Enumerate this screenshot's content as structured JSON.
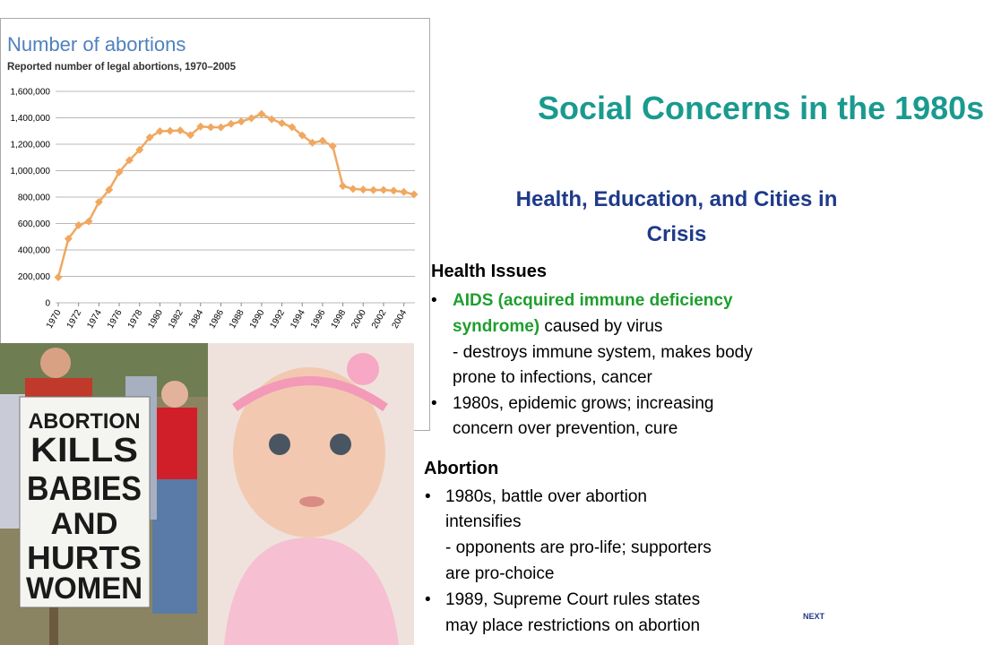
{
  "chart_data": {
    "type": "line",
    "title": "Number of abortions",
    "subtitle": "Reported number of legal abortions, 1970–2005",
    "x": [
      1970,
      1971,
      1972,
      1973,
      1974,
      1975,
      1976,
      1977,
      1978,
      1979,
      1980,
      1981,
      1982,
      1983,
      1984,
      1985,
      1986,
      1987,
      1988,
      1989,
      1990,
      1991,
      1992,
      1993,
      1994,
      1995,
      1996,
      1997,
      1998,
      1999,
      2000,
      2001,
      2002,
      2003,
      2004,
      2005
    ],
    "values": [
      193000,
      485000,
      587000,
      616000,
      763000,
      855000,
      989000,
      1079000,
      1158000,
      1252000,
      1298000,
      1301000,
      1304000,
      1269000,
      1334000,
      1329000,
      1328000,
      1354000,
      1372000,
      1397000,
      1429000,
      1389000,
      1359000,
      1330000,
      1267000,
      1211000,
      1226000,
      1186000,
      884000,
      862000,
      857000,
      853000,
      854000,
      848000,
      839000,
      820000
    ],
    "color": "#f0a860",
    "xlim": [
      1970,
      2005
    ],
    "xticks": [
      1970,
      1972,
      1974,
      1976,
      1978,
      1980,
      1982,
      1984,
      1986,
      1988,
      1990,
      1992,
      1994,
      1996,
      1998,
      2000,
      2002,
      2004
    ],
    "ylim": [
      0,
      1600000
    ],
    "yticks": [
      0,
      {
        "value": 200000,
        "label": "200,000"
      },
      {
        "value": 400000,
        "label": "400,000"
      },
      {
        "value": 600000,
        "label": "600,000"
      },
      {
        "value": 800000,
        "label": "800,000"
      },
      {
        "value": 1000000,
        "label": "1,000,000"
      },
      {
        "value": 1200000,
        "label": "1,200,000"
      },
      {
        "value": 1400000,
        "label": "1,400,000"
      },
      {
        "value": 1600000,
        "label": "1,600,000"
      }
    ],
    "grid": true
  },
  "slide": {
    "title": "Social Concerns in the 1980s",
    "subtitle": "Health, Education, and Cities in Crisis",
    "health": {
      "heading": "Health Issues",
      "lines": [
        "AIDS (acquired immune deficiency",
        "syndrome)",
        "caused by virus",
        "- destroys immune system, makes body",
        "prone to infections, cancer",
        "1980s, epidemic grows; increasing",
        "concern over prevention, cure"
      ]
    },
    "abortion": {
      "heading": "Abortion",
      "lines": [
        "1980s, battle over abortion",
        "intensifies",
        "- opponents are pro-life; supporters",
        "are pro-choice",
        "1989, Supreme Court rules states",
        "may place restrictions on abortion"
      ]
    },
    "sign": [
      "ABORTION",
      "KILLS",
      "BABIES",
      "AND",
      "HURTS",
      "WOMEN"
    ],
    "next": "NEXT"
  }
}
